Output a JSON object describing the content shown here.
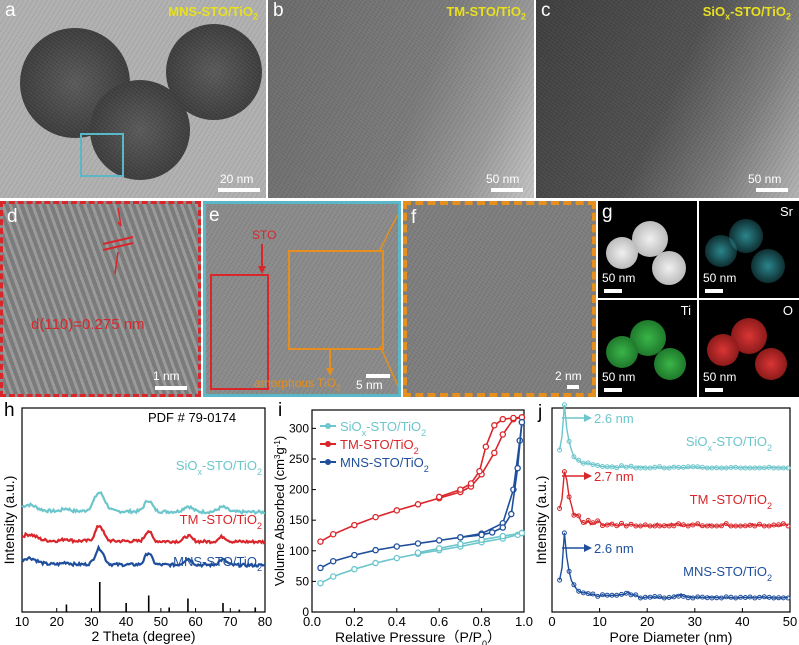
{
  "panels": {
    "a": {
      "label": "a",
      "title": "MNS-STO/TiO2",
      "scale": "20 nm"
    },
    "b": {
      "label": "b",
      "title": "TM-STO/TiO2",
      "scale": "50 nm"
    },
    "c": {
      "label": "c",
      "title": "SiOx-STO/TiO2",
      "scale": "50 nm"
    },
    "d": {
      "label": "d",
      "annotation": "d(110)=0.275 nm",
      "scale": "1 nm"
    },
    "e": {
      "label": "e",
      "sto": "STO",
      "amorphous": "amorphous TiO2",
      "scale": "5 nm"
    },
    "f": {
      "label": "f",
      "scale": "2 nm"
    },
    "g": {
      "label": "g",
      "scale": "50 nm",
      "maps": [
        "Sr",
        "Ti",
        "O"
      ]
    },
    "h": {
      "label": "h"
    },
    "i": {
      "label": "i"
    },
    "j": {
      "label": "j"
    }
  },
  "colors": {
    "siox": "#6cc6cc",
    "tm": "#d9262b",
    "mns": "#1f4f9c",
    "sto_box": "#d9262b",
    "amorph_box": "#e58f1f",
    "cyan_box": "#5ab7c8",
    "title_yellow": "#e8e020"
  },
  "chart_data": [
    {
      "panel": "h",
      "type": "line",
      "title": "PDF # 79-0174",
      "xlabel": "2 Theta (degree)",
      "ylabel": "Intensity (a.u.)",
      "xlim": [
        10,
        80
      ],
      "xticks": [
        10,
        20,
        30,
        40,
        50,
        60,
        70,
        80
      ],
      "reference_peaks": [
        {
          "x": 22.8,
          "h": 0.25
        },
        {
          "x": 32.4,
          "h": 1.0
        },
        {
          "x": 40.0,
          "h": 0.3
        },
        {
          "x": 46.5,
          "h": 0.55
        },
        {
          "x": 52.4,
          "h": 0.15
        },
        {
          "x": 57.8,
          "h": 0.45
        },
        {
          "x": 67.9,
          "h": 0.3
        },
        {
          "x": 72.6,
          "h": 0.08
        },
        {
          "x": 77.2,
          "h": 0.15
        }
      ],
      "series": [
        {
          "name": "SiOx-STO/TiO2",
          "color": "#6cc6cc",
          "offset": 2.0,
          "peaks": [
            [
              32.3,
              0.75,
              2.2
            ],
            [
              46.4,
              0.45,
              1.6
            ],
            [
              57.8,
              0.22,
              1.8
            ],
            [
              67.8,
              0.2,
              1.8
            ],
            [
              22.7,
              0.1,
              1.5
            ]
          ],
          "base": [
            0.55,
            0.05
          ]
        },
        {
          "name": "TM -STO/TiO2",
          "color": "#d9262b",
          "offset": 1.0,
          "peaks": [
            [
              32.3,
              0.62,
              1.6
            ],
            [
              46.4,
              0.42,
              1.3
            ],
            [
              57.8,
              0.22,
              1.5
            ],
            [
              67.8,
              0.2,
              1.5
            ],
            [
              22.7,
              0.08,
              1.3
            ]
          ],
          "base": [
            0.35,
            0.05
          ]
        },
        {
          "name": "MNS-STO/TiO2",
          "color": "#1f4f9c",
          "offset": 0.0,
          "peaks": [
            [
              32.3,
              0.65,
              1.7
            ],
            [
              46.4,
              0.48,
              1.4
            ],
            [
              57.8,
              0.25,
              1.6
            ],
            [
              67.8,
              0.22,
              1.6
            ],
            [
              22.7,
              0.08,
              1.4
            ]
          ],
          "base": [
            0.4,
            0.05
          ]
        }
      ]
    },
    {
      "panel": "i",
      "type": "line",
      "xlabel": "Relative Pressure (P/P0)",
      "ylabel": "Volume Absorbed (cm3 g-1)",
      "xlim": [
        0.0,
        1.0
      ],
      "ylim": [
        0,
        330
      ],
      "xticks": [
        0.0,
        0.2,
        0.4,
        0.6,
        0.8,
        1.0
      ],
      "yticks": [
        0,
        50,
        100,
        150,
        200,
        250,
        300
      ],
      "legend": "top-left",
      "series": [
        {
          "name": "SiOx-STO/TiO2",
          "color": "#6cc6cc",
          "adsorption": [
            [
              0.04,
              47
            ],
            [
              0.1,
              58
            ],
            [
              0.2,
              70
            ],
            [
              0.3,
              80
            ],
            [
              0.4,
              88
            ],
            [
              0.5,
              95
            ],
            [
              0.6,
              101
            ],
            [
              0.7,
              107
            ],
            [
              0.8,
              114
            ],
            [
              0.9,
              120
            ],
            [
              0.97,
              126
            ],
            [
              0.99,
              129
            ]
          ],
          "desorption": [
            [
              0.99,
              129
            ],
            [
              0.9,
              124
            ],
            [
              0.8,
              118
            ],
            [
              0.7,
              111
            ],
            [
              0.6,
              104
            ],
            [
              0.5,
              97
            ]
          ]
        },
        {
          "name": "TM-STO/TiO2",
          "color": "#d9262b",
          "adsorption": [
            [
              0.04,
              115
            ],
            [
              0.1,
              127
            ],
            [
              0.2,
              142
            ],
            [
              0.3,
              155
            ],
            [
              0.4,
              166
            ],
            [
              0.5,
              176
            ],
            [
              0.6,
              186
            ],
            [
              0.7,
              196
            ],
            [
              0.75,
              205
            ],
            [
              0.8,
              225
            ],
            [
              0.86,
              260
            ],
            [
              0.9,
              290
            ],
            [
              0.95,
              315
            ],
            [
              0.99,
              318
            ]
          ],
          "desorption": [
            [
              0.99,
              318
            ],
            [
              0.95,
              317
            ],
            [
              0.9,
              315
            ],
            [
              0.86,
              305
            ],
            [
              0.82,
              270
            ],
            [
              0.79,
              230
            ],
            [
              0.75,
              210
            ],
            [
              0.7,
              200
            ],
            [
              0.6,
              188
            ]
          ]
        },
        {
          "name": "MNS-STO/TiO2",
          "color": "#1f4f9c",
          "adsorption": [
            [
              0.04,
              72
            ],
            [
              0.1,
              83
            ],
            [
              0.2,
              93
            ],
            [
              0.3,
              101
            ],
            [
              0.4,
              107
            ],
            [
              0.5,
              112
            ],
            [
              0.6,
              117
            ],
            [
              0.7,
              122
            ],
            [
              0.8,
              128
            ],
            [
              0.9,
              145
            ],
            [
              0.95,
              200
            ],
            [
              0.98,
              280
            ],
            [
              0.99,
              310
            ]
          ],
          "desorption": [
            [
              0.99,
              310
            ],
            [
              0.97,
              235
            ],
            [
              0.94,
              160
            ],
            [
              0.9,
              138
            ],
            [
              0.85,
              130
            ],
            [
              0.8,
              126
            ],
            [
              0.7,
              122
            ]
          ]
        }
      ]
    },
    {
      "panel": "j",
      "type": "line",
      "xlabel": "Pore Diameter (nm)",
      "ylabel": "Intensity (a.u.)",
      "xlim": [
        0,
        50
      ],
      "xticks": [
        0,
        10,
        20,
        30,
        40,
        50
      ],
      "series": [
        {
          "name": "SiOx-STO/TiO2",
          "color": "#6cc6cc",
          "peak_label": "2.6 nm",
          "offset": 2.0,
          "peak": 2.6
        },
        {
          "name": "TM -STO/TiO2",
          "color": "#d9262b",
          "peak_label": "2.7 nm",
          "offset": 1.0,
          "peak": 2.7
        },
        {
          "name": "MNS-STO/TiO2",
          "color": "#1f4f9c",
          "peak_label": "2.6 nm",
          "offset": 0.0,
          "peak": 2.6
        }
      ]
    }
  ]
}
